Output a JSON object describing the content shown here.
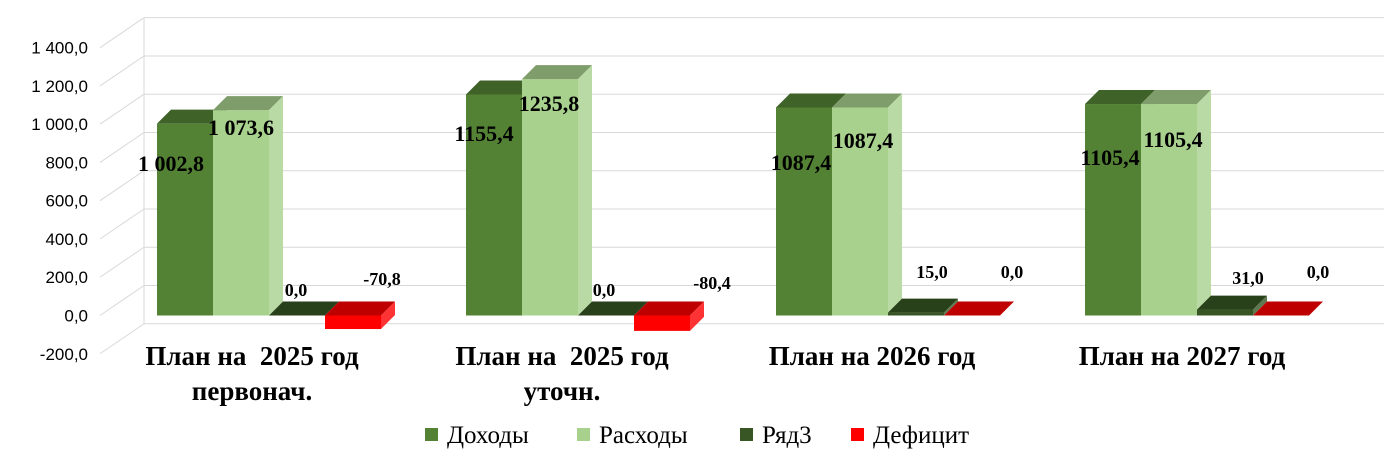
{
  "chart_data": {
    "type": "bar",
    "title": "",
    "xlabel": "",
    "ylabel": "",
    "ylim": [
      -200,
      1400
    ],
    "y_ticks": [
      "-200,0",
      "0,0",
      "200,0",
      "400,0",
      "600,0",
      "800,0",
      "1 000,0",
      "1 200,0",
      "1 400,0"
    ],
    "grid": true,
    "legend_position": "bottom",
    "categories": [
      [
        "План на  2025 год",
        "первонач."
      ],
      [
        "План на  2025 год",
        "уточн."
      ],
      [
        "План на 2026 год"
      ],
      [
        "План на 2027 год"
      ]
    ],
    "series": [
      {
        "name": "Доходы",
        "color": "#548235",
        "values": [
          1002.8,
          1155.4,
          1087.4,
          1105.4
        ],
        "labels": [
          "1 002,8",
          "1155,4",
          "1087,4",
          "1105,4"
        ]
      },
      {
        "name": "Расходы",
        "color": "#a9d18e",
        "values": [
          1073.6,
          1235.8,
          1087.4,
          1105.4
        ],
        "labels": [
          "1 073,6",
          "1235,8",
          "1087,4",
          "1105,4"
        ]
      },
      {
        "name": "Ряд3",
        "color": "#375623",
        "values": [
          0,
          0,
          15,
          31
        ],
        "labels": [
          "0,0",
          "0,0",
          "15,0",
          "31,0"
        ]
      },
      {
        "name": "Дефицит",
        "color": "#ff0000",
        "values": [
          -70.8,
          -80.4,
          0,
          0
        ],
        "labels": [
          "-70,8",
          "-80,4",
          "0,0",
          "0,0"
        ]
      }
    ]
  }
}
